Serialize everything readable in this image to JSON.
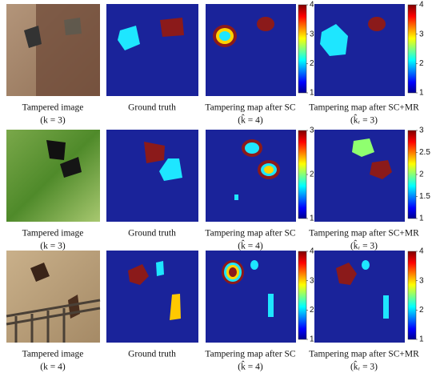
{
  "rows": [
    {
      "captions": [
        [
          "Tampered image",
          "(k = 3)"
        ],
        [
          "Ground truth"
        ],
        [
          "Tampering map after SC",
          "(k̂ = 4)"
        ],
        [
          "Tampering map after SC+MR",
          "(k̂ᵣ = 3)"
        ]
      ],
      "colorbars": [
        [
          "1",
          "2",
          "3",
          "4"
        ],
        [
          "1",
          "2",
          "3",
          "4"
        ]
      ]
    },
    {
      "captions": [
        [
          "Tampered image",
          "(k = 3)"
        ],
        [
          "Ground truth"
        ],
        [
          "Tampering map after SC",
          "(k̂ = 4)"
        ],
        [
          "Tampering map after SC+MR",
          "(k̂ᵣ = 3)"
        ]
      ],
      "colorbars": [
        [
          "1",
          "2",
          "3"
        ],
        [
          "1",
          "1.5",
          "2",
          "2.5",
          "3"
        ]
      ]
    },
    {
      "captions": [
        [
          "Tampered image",
          "(k = 4)"
        ],
        [
          "Ground truth"
        ],
        [
          "Tampering map after SC",
          "(k̂ = 4)"
        ],
        [
          "Tampering map after SC+MR",
          "(k̂ᵣ = 3)"
        ]
      ],
      "colorbars": [
        [
          "1",
          "2",
          "3",
          "4"
        ],
        [
          "1",
          "2",
          "3",
          "4"
        ]
      ]
    }
  ]
}
